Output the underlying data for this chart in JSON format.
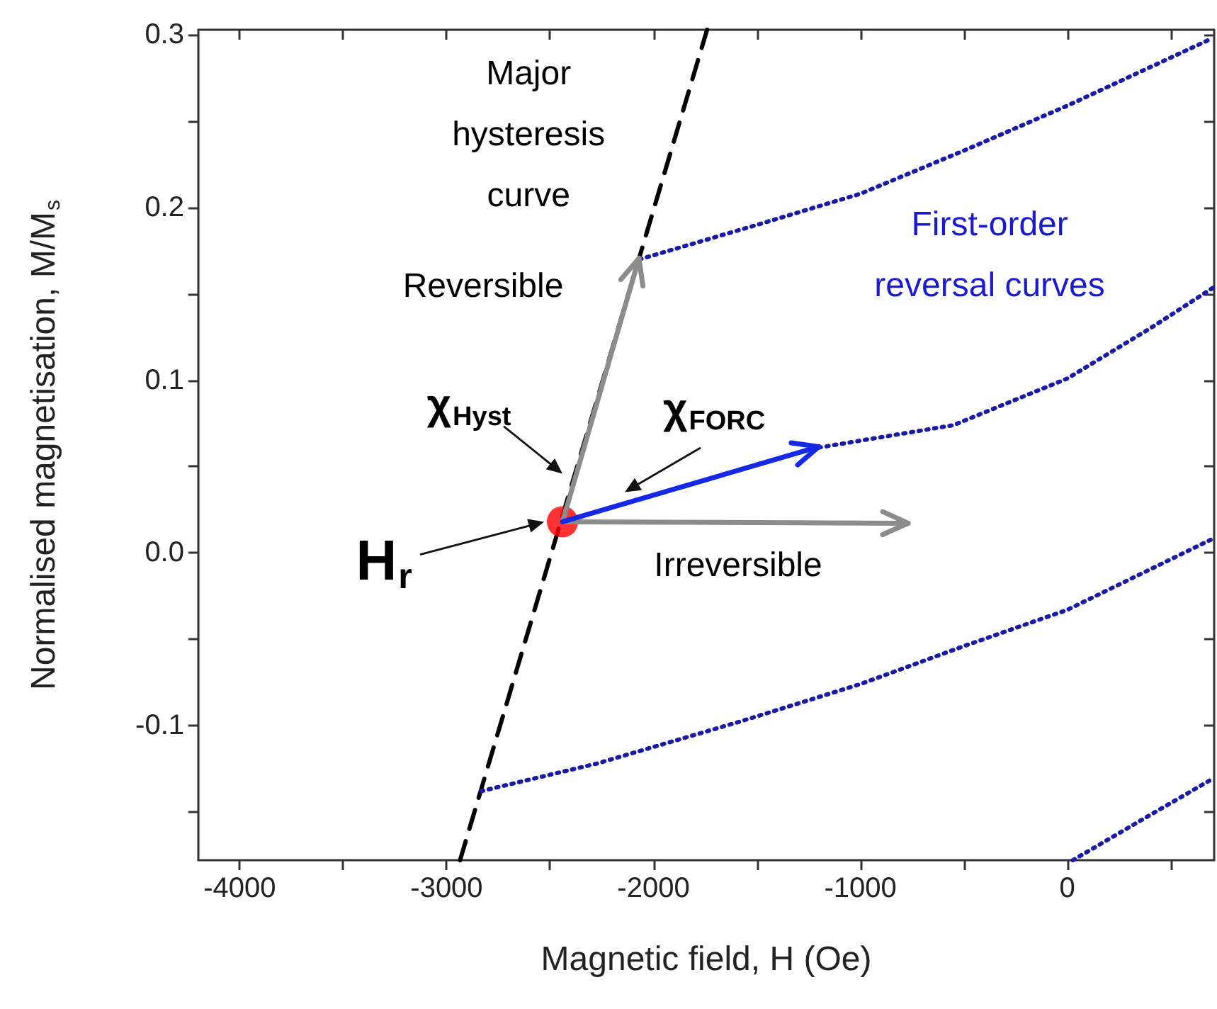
{
  "chart_data": {
    "type": "line",
    "xlabel": "Magnetic field, H (Oe)",
    "ylabel": "Normalised magnetisation, M/M$_{s}$",
    "xlim": [
      -4200,
      710
    ],
    "ylim": [
      -0.178,
      0.303
    ],
    "xticks": [
      -4000,
      {
        "value": -3500,
        "label": null
      },
      -3000,
      {
        "value": -2500,
        "label": null
      },
      -2000,
      {
        "value": -1500,
        "label": null
      },
      -1000,
      {
        "value": -500,
        "label": null
      },
      0,
      {
        "value": 500,
        "label": null
      }
    ],
    "yticks": [
      {
        "value": -0.15,
        "label": null
      },
      -0.1,
      {
        "value": -0.05,
        "label": null
      },
      {
        "value": 0,
        "label": "0.0"
      },
      {
        "value": 0.05,
        "label": null
      },
      0.1,
      {
        "value": 0.15,
        "label": null
      },
      0.2,
      {
        "value": 0.25,
        "label": null
      },
      0.3
    ],
    "grid": false,
    "legend": false,
    "series": [
      {
        "name": "Major hysteresis curve",
        "line_style": "dashed",
        "marker": "none",
        "color": "#000000",
        "x": [
          -2935,
          -1741
        ],
        "values": [
          -0.178,
          0.303
        ]
      },
      {
        "name": "First-order reversal curves",
        "line_style": "dotted",
        "marker": "none",
        "color": "#1a1aa8",
        "x": [
          -2068,
          -1500,
          -1000,
          -500,
          0,
          700
        ],
        "values": [
          0.17,
          0.19,
          0.208,
          0.233,
          0.259,
          0.298
        ]
      },
      {
        "line_style": "dotted",
        "marker": "none",
        "color": "#1a1aa8",
        "x": [
          -1201,
          -550,
          0,
          400,
          710
        ],
        "values": [
          0.061,
          0.074,
          0.101,
          0.13,
          0.154
        ]
      },
      {
        "line_style": "dotted",
        "marker": "none",
        "color": "#1a1aa8",
        "x": [
          -2833,
          -2273,
          -1590,
          -1000,
          -500,
          0,
          700
        ],
        "values": [
          -0.138,
          -0.122,
          -0.098,
          -0.076,
          -0.054,
          -0.033,
          0.008
        ]
      },
      {
        "line_style": "dotted",
        "marker": "none",
        "color": "#1a1aa8",
        "x": [
          27,
          369,
          700
        ],
        "values": [
          -0.178,
          -0.154,
          -0.131
        ]
      },
      {
        "type": "scatter",
        "marker": "circle",
        "color": "#ff0000",
        "x": [
          -2440
        ],
        "values": [
          0.018
        ]
      }
    ],
    "annotations": [
      "Reversible",
      "Irreversible",
      "χ$_{Hyst}$",
      "χ$_{FORC}$",
      {
        "text": "H$_{r}$",
        "x": -2440,
        "y": 0.018
      }
    ]
  }
}
